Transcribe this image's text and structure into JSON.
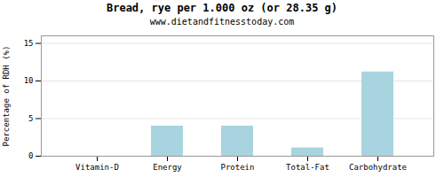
{
  "chart_data": {
    "type": "bar",
    "title": "Bread, rye per 1.000 oz (or 28.35 g)",
    "subtitle": "www.dietandfitnesstoday.com",
    "ylabel": "Percentage of RDH (%)",
    "categories": [
      "Vitamin-D",
      "Energy",
      "Protein",
      "Total-Fat",
      "Carbohydrate"
    ],
    "values": [
      0,
      4.0,
      4.0,
      1.1,
      11.2
    ],
    "color": "#a8d4e0",
    "ylim": [
      0,
      16
    ],
    "yticks": [
      0,
      5,
      10,
      15
    ],
    "grid": true
  }
}
